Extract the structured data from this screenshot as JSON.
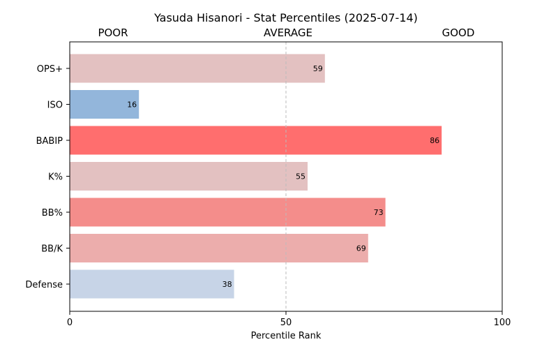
{
  "chart_data": {
    "type": "bar",
    "orientation": "horizontal",
    "title": "Yasuda Hisanori - Stat Percentiles (2025-07-14)",
    "zone_labels": [
      "POOR",
      "AVERAGE",
      "GOOD"
    ],
    "xlabel": "Percentile Rank",
    "xlim": [
      0,
      100
    ],
    "xticks": [
      0,
      50,
      100
    ],
    "reference_line": 50,
    "grid": false,
    "categories": [
      "OPS+",
      "ISO",
      "BABIP",
      "K%",
      "BB%",
      "BB/K",
      "Defense"
    ],
    "values": [
      59,
      16,
      86,
      55,
      73,
      69,
      38
    ],
    "colors": [
      "#e3c1c1",
      "#93b6db",
      "#ff6e6e",
      "#e3c1c1",
      "#f48d8b",
      "#ecadac",
      "#c7d4e7"
    ]
  }
}
